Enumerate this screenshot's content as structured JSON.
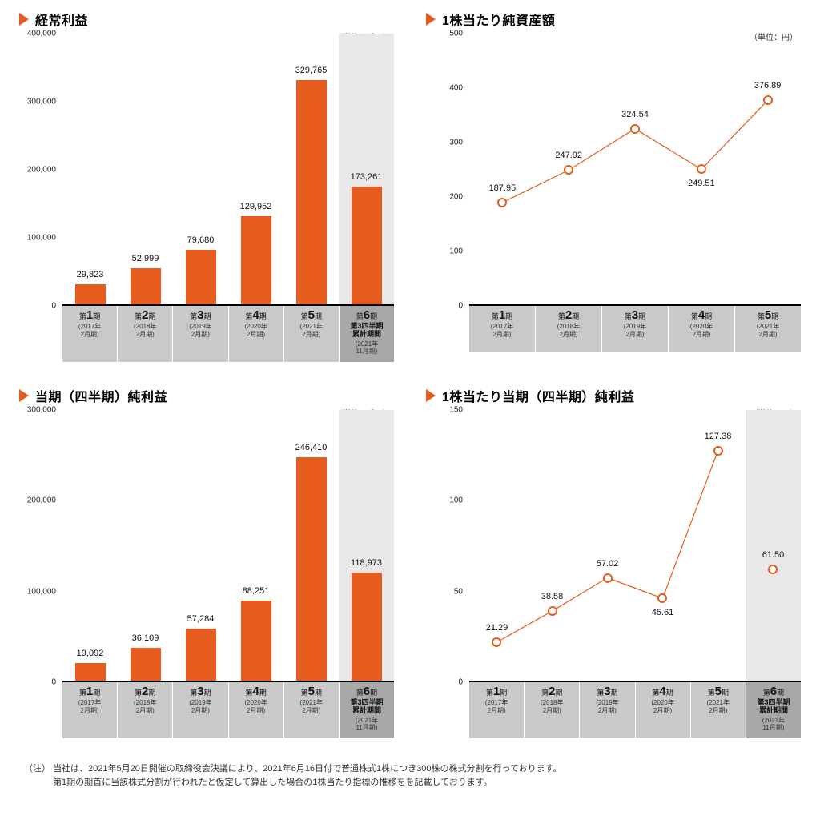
{
  "colors": {
    "accent": "#e65c1f",
    "axis": "#000000",
    "xrow_bg": "#c9c9c9",
    "xrow_dark": "#a8a8a8",
    "q_shade": "#e8e8e8",
    "marker_fill": "#ffffff"
  },
  "charts": {
    "tl": {
      "title": "経常利益",
      "unit": "（単位：千円）",
      "type": "bar",
      "ylim": [
        0,
        400000
      ],
      "yticks": [
        0,
        100000,
        200000,
        300000,
        400000
      ],
      "ytick_labels": [
        "0",
        "100,000",
        "200,000",
        "300,000",
        "400,000"
      ],
      "categories": [
        {
          "num": "1",
          "year": "2017年",
          "month": "2月期"
        },
        {
          "num": "2",
          "year": "2018年",
          "month": "2月期"
        },
        {
          "num": "3",
          "year": "2019年",
          "month": "2月期"
        },
        {
          "num": "4",
          "year": "2020年",
          "month": "2月期"
        },
        {
          "num": "5",
          "year": "2021年",
          "month": "2月期"
        },
        {
          "num": "6",
          "year": "2021年",
          "month": "11月期",
          "q": true,
          "extra1": "第3四半期",
          "extra2": "累計期間"
        }
      ],
      "values": [
        29823,
        52999,
        79680,
        129952,
        329765,
        173261
      ],
      "value_labels": [
        "29,823",
        "52,999",
        "79,680",
        "129,952",
        "329,765",
        "173,261"
      ]
    },
    "tr": {
      "title": "1株当たり純資産額",
      "unit": "（単位：円）",
      "type": "line",
      "ylim": [
        0,
        500
      ],
      "yticks": [
        0,
        100,
        200,
        300,
        400,
        500
      ],
      "ytick_labels": [
        "0",
        "100",
        "200",
        "300",
        "400",
        "500"
      ],
      "categories": [
        {
          "num": "1",
          "year": "2017年",
          "month": "2月期"
        },
        {
          "num": "2",
          "year": "2018年",
          "month": "2月期"
        },
        {
          "num": "3",
          "year": "2019年",
          "month": "2月期"
        },
        {
          "num": "4",
          "year": "2020年",
          "month": "2月期"
        },
        {
          "num": "5",
          "year": "2021年",
          "month": "2月期"
        }
      ],
      "values": [
        187.95,
        247.92,
        324.54,
        249.51,
        376.89
      ],
      "value_labels": [
        "187.95",
        "247.92",
        "324.54",
        "249.51",
        "376.89"
      ],
      "label_pos": [
        "above",
        "above",
        "above",
        "below",
        "above"
      ]
    },
    "bl": {
      "title": "当期（四半期）純利益",
      "unit": "（単位：千円）",
      "type": "bar",
      "ylim": [
        0,
        300000
      ],
      "yticks": [
        0,
        100000,
        200000,
        300000
      ],
      "ytick_labels": [
        "0",
        "100,000",
        "200,000",
        "300,000"
      ],
      "categories": [
        {
          "num": "1",
          "year": "2017年",
          "month": "2月期"
        },
        {
          "num": "2",
          "year": "2018年",
          "month": "2月期"
        },
        {
          "num": "3",
          "year": "2019年",
          "month": "2月期"
        },
        {
          "num": "4",
          "year": "2020年",
          "month": "2月期"
        },
        {
          "num": "5",
          "year": "2021年",
          "month": "2月期"
        },
        {
          "num": "6",
          "year": "2021年",
          "month": "11月期",
          "q": true,
          "extra1": "第3四半期",
          "extra2": "累計期間"
        }
      ],
      "values": [
        19092,
        36109,
        57284,
        88251,
        246410,
        118973
      ],
      "value_labels": [
        "19,092",
        "36,109",
        "57,284",
        "88,251",
        "246,410",
        "118,973"
      ]
    },
    "br": {
      "title": "1株当たり当期（四半期）純利益",
      "unit": "（単位：円）",
      "type": "line",
      "ylim": [
        0,
        150
      ],
      "yticks": [
        0,
        50,
        100,
        150
      ],
      "ytick_labels": [
        "0",
        "50",
        "100",
        "150"
      ],
      "categories": [
        {
          "num": "1",
          "year": "2017年",
          "month": "2月期"
        },
        {
          "num": "2",
          "year": "2018年",
          "month": "2月期"
        },
        {
          "num": "3",
          "year": "2019年",
          "month": "2月期"
        },
        {
          "num": "4",
          "year": "2020年",
          "month": "2月期"
        },
        {
          "num": "5",
          "year": "2021年",
          "month": "2月期"
        },
        {
          "num": "6",
          "year": "2021年",
          "month": "11月期",
          "q": true,
          "extra1": "第3四半期",
          "extra2": "累計期間"
        }
      ],
      "values": [
        21.29,
        38.58,
        57.02,
        45.61,
        127.38,
        61.5
      ],
      "value_labels": [
        "21.29",
        "38.58",
        "57.02",
        "45.61",
        "127.38",
        "61.50"
      ],
      "label_pos": [
        "above",
        "above",
        "above",
        "below",
        "above",
        "above"
      ],
      "connect_until": 5
    }
  },
  "footnote": {
    "label": "（注）",
    "line1": "当社は、2021年5月20日開催の取締役会決議により、2021年6月16日付で普通株式1株につき300株の株式分割を行っております。",
    "line2": "第1期の期首に当該株式分割が行われたと仮定して算出した場合の1株当たり指標の推移をを記載しております。"
  },
  "xaxis_prefix": "第",
  "xaxis_suffix": "期",
  "line_style": {
    "stroke_width": 2,
    "marker_radius": 6
  }
}
